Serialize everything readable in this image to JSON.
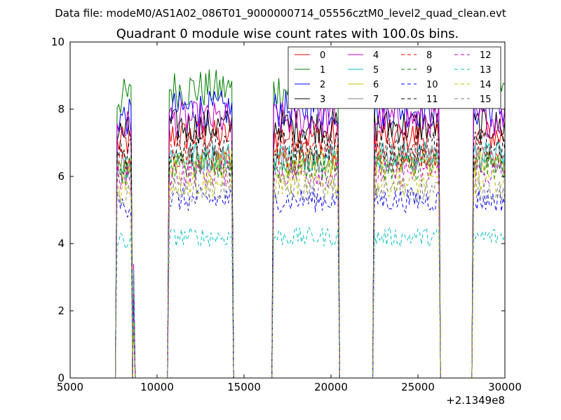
{
  "chart_data": {
    "type": "line",
    "suptitle": "Data file: modeM0/AS1A02_086T01_9000000714_05556cztM0_level2_quad_clean.evt",
    "title": "Quadrant 0 module wise count rates with 100.0s bins.",
    "xlabel": "",
    "ylabel": "",
    "x_offset_label": "+2.1349e8",
    "xlim": [
      5000,
      30000
    ],
    "ylim": [
      0,
      10
    ],
    "x_ticks": [
      5000,
      10000,
      15000,
      20000,
      25000,
      30000
    ],
    "y_ticks": [
      0,
      2,
      4,
      6,
      8,
      10
    ],
    "legend_position": "top-right",
    "legend_columns": 4,
    "segments": [
      {
        "start": 7700,
        "end": 8500
      },
      {
        "start": 10700,
        "end": 14300
      },
      {
        "start": 16700,
        "end": 20400
      },
      {
        "start": 22500,
        "end": 26200
      },
      {
        "start": 28200,
        "end": 30000
      }
    ],
    "spike": {
      "x": 8650,
      "note": "short burst after first segment"
    },
    "series": [
      {
        "name": "0",
        "color": "#ff0000",
        "dash": "solid",
        "level": 7.2
      },
      {
        "name": "1",
        "color": "#008000",
        "dash": "solid",
        "level": 8.6
      },
      {
        "name": "2",
        "color": "#0000ff",
        "dash": "solid",
        "level": 8.0
      },
      {
        "name": "3",
        "color": "#000000",
        "dash": "solid",
        "level": 7.5
      },
      {
        "name": "4",
        "color": "#bf00bf",
        "dash": "solid",
        "level": 7.7
      },
      {
        "name": "5",
        "color": "#00bfbf",
        "dash": "solid",
        "level": 6.6
      },
      {
        "name": "6",
        "color": "#bfbf00",
        "dash": "solid",
        "level": 6.4
      },
      {
        "name": "7",
        "color": "#808080",
        "dash": "solid",
        "level": 6.5
      },
      {
        "name": "8",
        "color": "#ff0000",
        "dash": "dashed",
        "level": 6.7
      },
      {
        "name": "9",
        "color": "#008000",
        "dash": "dashed",
        "level": 6.3
      },
      {
        "name": "10",
        "color": "#0000ff",
        "dash": "dashed",
        "level": 5.3
      },
      {
        "name": "11",
        "color": "#000000",
        "dash": "dashed",
        "level": 6.9
      },
      {
        "name": "12",
        "color": "#bf00bf",
        "dash": "dashed",
        "level": 6.1
      },
      {
        "name": "13",
        "color": "#00bfbf",
        "dash": "dashed",
        "level": 4.2
      },
      {
        "name": "14",
        "color": "#bfbf00",
        "dash": "dashed",
        "level": 5.8
      },
      {
        "name": "15",
        "color": "#808080",
        "dash": "dashed",
        "level": 5.6
      }
    ]
  }
}
